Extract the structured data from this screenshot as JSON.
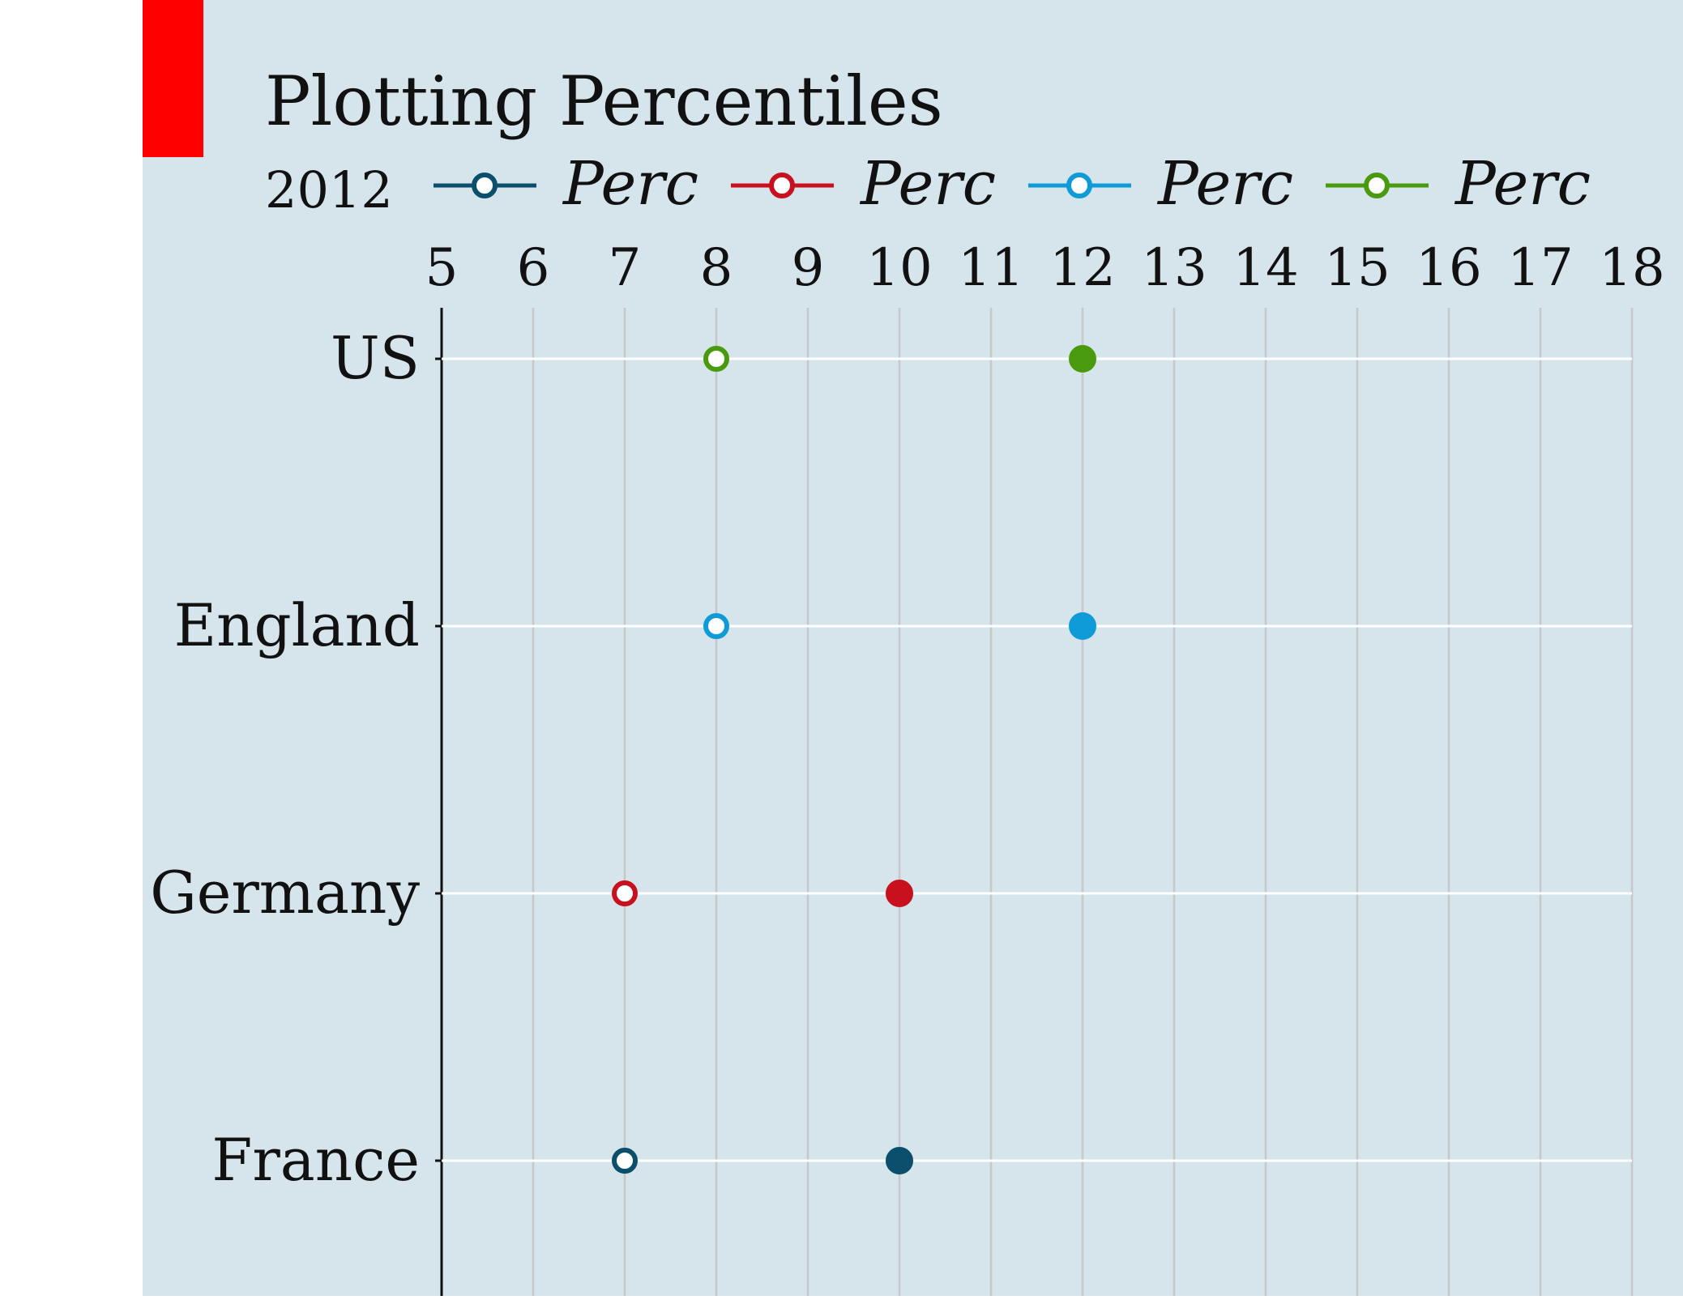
{
  "chart_data": {
    "type": "scatter",
    "title": "Plotting Percentiles",
    "subtitle": "2012",
    "xlabel": "",
    "ylabel": "",
    "x_ticks": [
      5,
      6,
      7,
      8,
      9,
      10,
      11,
      12,
      13,
      14,
      15,
      16,
      17,
      18
    ],
    "xlim": [
      5,
      18
    ],
    "x_axis_position": "top",
    "grid": true,
    "legend_placement": "top",
    "categories": [
      "US",
      "England",
      "Germany",
      "France"
    ],
    "legend": [
      {
        "label": "Perc",
        "color": "#0b4f6c"
      },
      {
        "label": "Perc",
        "color": "#c8101e"
      },
      {
        "label": "Perc",
        "color": "#0f9bd7"
      },
      {
        "label": "Perc",
        "color": "#4a9a0f"
      }
    ],
    "series": [
      {
        "category": "France",
        "color": "#0b4f6c",
        "points": [
          {
            "x": 7,
            "style": "open"
          },
          {
            "x": 10,
            "style": "filled"
          }
        ]
      },
      {
        "category": "Germany",
        "color": "#c8101e",
        "points": [
          {
            "x": 7,
            "style": "open"
          },
          {
            "x": 10,
            "style": "filled"
          }
        ]
      },
      {
        "category": "England",
        "color": "#0f9bd7",
        "points": [
          {
            "x": 8,
            "style": "open"
          },
          {
            "x": 12,
            "style": "filled"
          }
        ]
      },
      {
        "category": "US",
        "color": "#4a9a0f",
        "points": [
          {
            "x": 8,
            "style": "open"
          },
          {
            "x": 12,
            "style": "filled"
          }
        ]
      }
    ]
  },
  "colors": {
    "panel_background": "#d6e4ec",
    "accent_bar": "#ff0000",
    "gridline": "#c8c8c8",
    "category_line": "#ffffff"
  }
}
